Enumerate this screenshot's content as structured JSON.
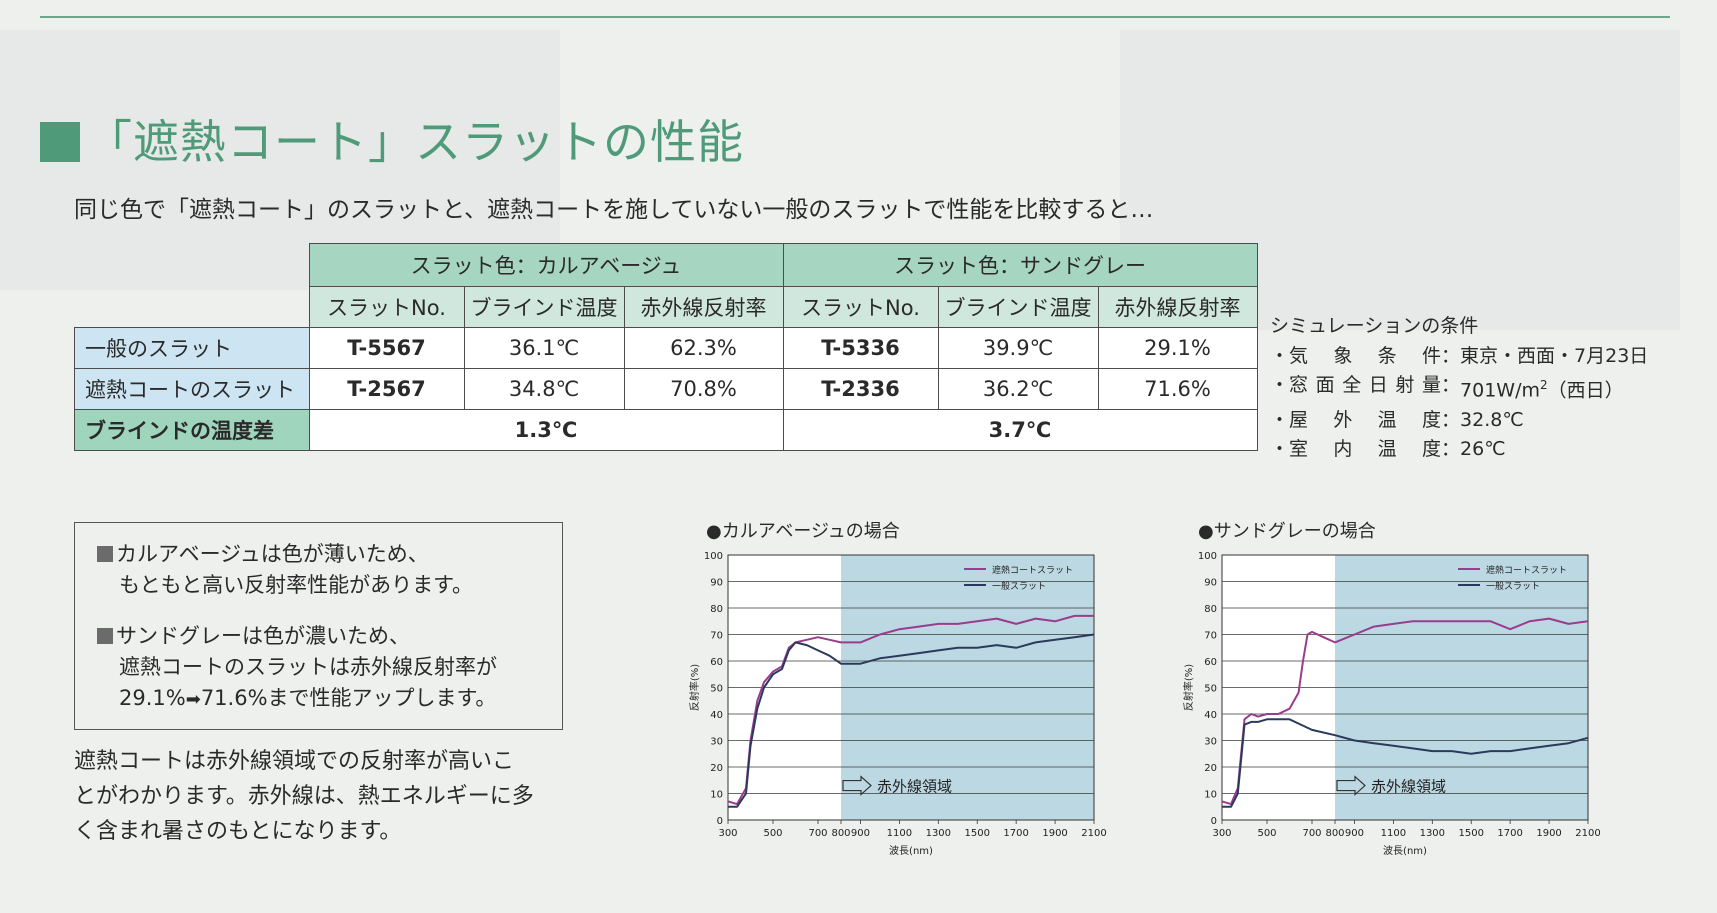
{
  "heading": "「遮熱コート」スラットの性能",
  "intro": "同じ色で「遮熱コート」のスラットと、遮熱コートを施していない一般のスラットで性能を比較すると…",
  "table": {
    "group1": "スラット色：カルアベージュ",
    "group2": "スラット色：サンドグレー",
    "col_no": "スラットNo.",
    "col_temp": "ブラインド温度",
    "col_refl": "赤外線反射率",
    "rows": [
      {
        "label": "一般のスラット",
        "no1": "T-5567",
        "temp1": "36.1℃",
        "refl1": "62.3%",
        "no2": "T-5336",
        "temp2": "39.9℃",
        "refl2": "29.1%"
      },
      {
        "label": "遮熱コートのスラット",
        "no1": "T-2567",
        "temp1": "34.8℃",
        "refl1": "70.8%",
        "no2": "T-2336",
        "temp2": "36.2℃",
        "refl2": "71.6%"
      }
    ],
    "diff_label": "ブラインドの温度差",
    "diff1": "1.3℃",
    "diff2": "3.7℃"
  },
  "simulation": {
    "title": "シミュレーションの条件",
    "weather_label": "気象条件",
    "weather_value": "東京・西面・7月23日",
    "radiation_label": "窓面全日射量",
    "radiation_value": "701W/m",
    "radiation_sup": "2",
    "radiation_suffix": "（西日）",
    "outdoor_label": "屋外温度",
    "outdoor_value": "32.8℃",
    "indoor_label": "室内温度",
    "indoor_value": "26℃"
  },
  "notes": {
    "note1_line1": "カルアベージュは色が薄いため、",
    "note1_line2": "もともと高い反射率性能があります。",
    "note2_line1": "サンドグレーは色が濃いため、",
    "note2_line2": "遮熱コートのスラットは赤外線反射率が",
    "note2_line3a": "29.1%",
    "note2_line3b": "71.6%まで性能アップします。"
  },
  "paragraph": {
    "line1": "遮熱コートは赤外線領域での反射率が高いこ",
    "line2": "とがわかります。赤外線は、熱エネルギーに多",
    "line3": "く含まれ暑さのもとになります。"
  },
  "colors": {
    "accent_green": "#4f9a79",
    "coated_line": "#9a3c8e",
    "general_line": "#2b3a5c",
    "infrared_band": "#bcd9e3"
  },
  "chart_data": [
    {
      "type": "line",
      "title": "●カルアベージュの場合",
      "xlabel": "波長(nm)",
      "ylabel": "反射率(%)",
      "xlim": [
        300,
        2100
      ],
      "ylim": [
        0,
        100
      ],
      "xticks": [
        300,
        500,
        700,
        800,
        900,
        1100,
        1300,
        1500,
        1700,
        1900,
        2100
      ],
      "yticks": [
        0,
        10,
        20,
        30,
        40,
        50,
        60,
        70,
        80,
        90,
        100
      ],
      "grid": true,
      "legend_position": "top-right",
      "band": {
        "from": 800,
        "to": 2100,
        "label": "赤外線領域"
      },
      "series": [
        {
          "name": "遮熱コートスラット",
          "x": [
            300,
            340,
            380,
            400,
            430,
            460,
            500,
            540,
            570,
            600,
            650,
            700,
            750,
            800,
            900,
            1000,
            1100,
            1200,
            1300,
            1400,
            1500,
            1600,
            1700,
            1800,
            1900,
            2000,
            2100
          ],
          "y": [
            7,
            6,
            12,
            30,
            45,
            52,
            56,
            58,
            65,
            67,
            68,
            69,
            68,
            67,
            67,
            70,
            72,
            73,
            74,
            74,
            75,
            76,
            74,
            76,
            75,
            77,
            77
          ]
        },
        {
          "name": "一般スラット",
          "x": [
            300,
            340,
            380,
            400,
            430,
            460,
            500,
            540,
            570,
            600,
            650,
            700,
            750,
            800,
            900,
            1000,
            1100,
            1200,
            1300,
            1400,
            1500,
            1600,
            1700,
            1800,
            1900,
            2000,
            2100
          ],
          "y": [
            5,
            5,
            10,
            28,
            42,
            50,
            55,
            57,
            64,
            67,
            66,
            64,
            62,
            59,
            59,
            61,
            62,
            63,
            64,
            65,
            65,
            66,
            65,
            67,
            68,
            69,
            70
          ]
        }
      ]
    },
    {
      "type": "line",
      "title": "●サンドグレーの場合",
      "xlabel": "波長(nm)",
      "ylabel": "反射率(%)",
      "xlim": [
        300,
        2100
      ],
      "ylim": [
        0,
        100
      ],
      "xticks": [
        300,
        500,
        700,
        800,
        900,
        1100,
        1300,
        1500,
        1700,
        1900,
        2100
      ],
      "yticks": [
        0,
        10,
        20,
        30,
        40,
        50,
        60,
        70,
        80,
        90,
        100
      ],
      "grid": true,
      "legend_position": "top-right",
      "band": {
        "from": 800,
        "to": 2100,
        "label": "赤外線領域"
      },
      "series": [
        {
          "name": "遮熱コートスラット",
          "x": [
            300,
            340,
            370,
            400,
            430,
            460,
            500,
            550,
            600,
            640,
            660,
            680,
            700,
            750,
            800,
            900,
            1000,
            1100,
            1200,
            1300,
            1400,
            1500,
            1600,
            1700,
            1800,
            1900,
            2000,
            2100
          ],
          "y": [
            7,
            6,
            12,
            38,
            40,
            39,
            40,
            40,
            42,
            48,
            60,
            70,
            71,
            69,
            67,
            70,
            73,
            74,
            75,
            75,
            75,
            75,
            75,
            72,
            75,
            76,
            74,
            75
          ]
        },
        {
          "name": "一般スラット",
          "x": [
            300,
            340,
            370,
            400,
            430,
            460,
            500,
            550,
            600,
            650,
            700,
            800,
            900,
            1000,
            1100,
            1200,
            1300,
            1400,
            1500,
            1600,
            1700,
            1800,
            1900,
            2000,
            2100
          ],
          "y": [
            5,
            5,
            10,
            36,
            37,
            37,
            38,
            38,
            38,
            36,
            34,
            32,
            30,
            29,
            28,
            27,
            26,
            26,
            25,
            26,
            26,
            27,
            28,
            29,
            31
          ]
        }
      ]
    }
  ]
}
